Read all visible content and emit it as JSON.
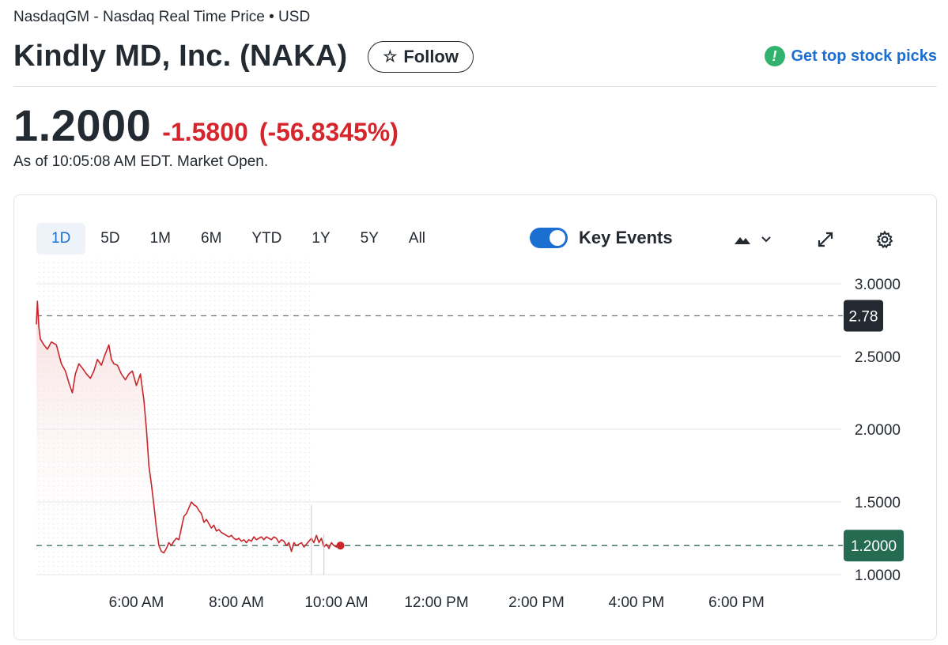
{
  "header": {
    "exchange_line": "NasdaqGM - Nasdaq Real Time Price • USD",
    "company": "Kindly MD, Inc. (NAKA)",
    "follow_label": "Follow",
    "follow_icon": "star-icon",
    "picks_label": "Get top stock picks",
    "picks_icon": "exclamation-badge-icon"
  },
  "quote": {
    "price": "1.2000",
    "change": "-1.5800",
    "change_pct": "(-56.8345%)",
    "as_of": "As of 10:05:08 AM EDT. Market Open.",
    "colors": {
      "down": "#d5252d",
      "text": "#232a31",
      "accent": "#1a6fd1"
    }
  },
  "chart_controls": {
    "ranges": [
      "1D",
      "5D",
      "1M",
      "6M",
      "YTD",
      "1Y",
      "5Y",
      "All"
    ],
    "active_range": "1D",
    "key_events_label": "Key Events",
    "key_events_on": true,
    "chart_type_icon": "mountain-icon",
    "dropdown_icon": "chevron-down-icon",
    "expand_icon": "expand-icon",
    "settings_icon": "gear-icon"
  },
  "chart_data": {
    "type": "area",
    "title": "",
    "xlabel": "",
    "ylabel": "",
    "x_ticks": [
      "6:00 AM",
      "8:00 AM",
      "10:00 AM",
      "12:00 PM",
      "2:00 PM",
      "4:00 PM",
      "6:00 PM"
    ],
    "y_ticks": [
      "3.0000",
      "2.5000",
      "2.0000",
      "1.5000",
      "1.0000"
    ],
    "ylim": [
      1.0,
      3.0
    ],
    "x_range_hours": [
      4.0,
      20.0
    ],
    "previous_close_label": "2.78",
    "previous_close": 2.78,
    "current_label": "1.2000",
    "current": 1.2,
    "premarket_shaded": true,
    "grid": true,
    "colors": {
      "line": "#c7262b",
      "area_top": "#f7d9da",
      "prev_close_tag": "#232a31",
      "current_tag": "#246b52",
      "current_line": "#2e6b4e"
    },
    "series": [
      {
        "x": [
          4.0,
          4.02,
          4.05,
          4.08,
          4.15,
          4.22,
          4.3,
          4.4,
          4.5,
          4.58,
          4.65,
          4.72,
          4.78,
          4.85,
          4.92,
          5.0,
          5.08,
          5.15,
          5.22,
          5.3,
          5.38,
          5.45,
          5.5,
          5.55,
          5.62,
          5.7,
          5.78,
          5.85,
          5.92,
          6.0,
          6.08,
          6.15,
          6.2,
          6.25,
          6.3,
          6.35,
          6.4,
          6.45,
          6.5,
          6.55,
          6.6,
          6.65,
          6.7,
          6.75,
          6.8,
          6.85,
          6.9,
          6.95,
          7.0,
          7.05,
          7.1,
          7.15,
          7.2,
          7.25,
          7.3,
          7.35,
          7.4,
          7.45,
          7.5,
          7.55,
          7.6,
          7.65,
          7.7,
          7.75,
          7.8,
          7.85,
          7.9,
          7.95,
          8.0,
          8.05,
          8.1,
          8.15,
          8.2,
          8.25,
          8.3,
          8.35,
          8.4,
          8.45,
          8.5,
          8.55,
          8.6,
          8.65,
          8.7,
          8.75,
          8.8,
          8.85,
          8.9,
          8.95,
          9.0,
          9.05,
          9.1,
          9.15,
          9.2,
          9.25,
          9.3,
          9.35,
          9.4,
          9.45,
          9.5,
          9.55,
          9.6,
          9.65,
          9.7,
          9.75,
          9.8,
          9.85,
          9.9,
          9.95,
          10.0,
          10.05,
          10.08
        ],
        "y": [
          2.72,
          2.88,
          2.7,
          2.62,
          2.58,
          2.55,
          2.6,
          2.58,
          2.45,
          2.4,
          2.32,
          2.25,
          2.38,
          2.45,
          2.42,
          2.38,
          2.35,
          2.4,
          2.48,
          2.44,
          2.52,
          2.58,
          2.48,
          2.45,
          2.44,
          2.38,
          2.34,
          2.38,
          2.4,
          2.3,
          2.38,
          2.2,
          2.0,
          1.75,
          1.62,
          1.48,
          1.32,
          1.2,
          1.16,
          1.15,
          1.18,
          1.22,
          1.2,
          1.23,
          1.25,
          1.24,
          1.32,
          1.4,
          1.42,
          1.46,
          1.5,
          1.48,
          1.47,
          1.44,
          1.42,
          1.36,
          1.38,
          1.35,
          1.32,
          1.34,
          1.3,
          1.31,
          1.29,
          1.28,
          1.27,
          1.26,
          1.27,
          1.25,
          1.24,
          1.25,
          1.23,
          1.24,
          1.22,
          1.24,
          1.23,
          1.26,
          1.24,
          1.25,
          1.26,
          1.24,
          1.26,
          1.25,
          1.24,
          1.26,
          1.25,
          1.22,
          1.24,
          1.23,
          1.2,
          1.22,
          1.16,
          1.22,
          1.2,
          1.21,
          1.22,
          1.19,
          1.21,
          1.23,
          1.25,
          1.22,
          1.27,
          1.22,
          1.25,
          1.19,
          1.21,
          1.18,
          1.22,
          1.2,
          1.19,
          1.21,
          1.2
        ]
      }
    ]
  }
}
